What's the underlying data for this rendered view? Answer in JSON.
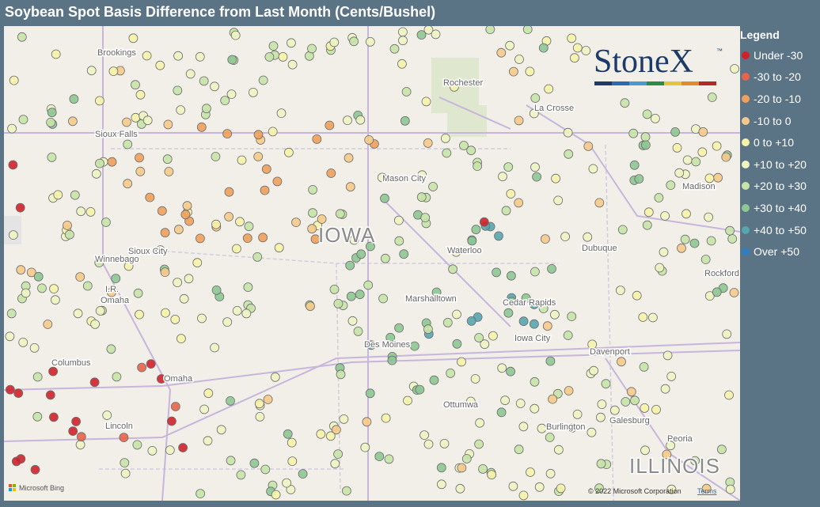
{
  "header": {
    "title": "Soybean Spot Basis Difference from Last Month (Cents/Bushel)"
  },
  "legend": {
    "title": "Legend",
    "items": [
      {
        "label": "Under -30",
        "color": "#d0212b"
      },
      {
        "label": "-30 to -20",
        "color": "#e8634a"
      },
      {
        "label": "-20 to -10",
        "color": "#f0a05c"
      },
      {
        "label": "-10 to 0",
        "color": "#f6c98a"
      },
      {
        "label": "0 to +10",
        "color": "#f6f2a8"
      },
      {
        "label": "+10 to +20",
        "color": "#eef4c2"
      },
      {
        "label": "+20 to +30",
        "color": "#c7e3a8"
      },
      {
        "label": "+30 to +40",
        "color": "#8ec793"
      },
      {
        "label": "+40 to +50",
        "color": "#58a5b0"
      },
      {
        "label": "Over +50",
        "color": "#2f7fc0"
      }
    ]
  },
  "logo": {
    "name": "StoneX",
    "mark": "™"
  },
  "map": {
    "labels": [
      "Brookings",
      "Rochester",
      "La Crosse",
      "Sioux Falls",
      "Mason City",
      "Madison",
      "Sioux City",
      "Waterloo",
      "Dubuque",
      "Rockford",
      "Winnebago",
      "I.R.",
      "Omaha",
      "Marshalltown",
      "Cedar Rapids",
      "Iowa City",
      "Davenport",
      "Des Moines",
      "Omaha",
      "Columbus",
      "Lincoln",
      "Ottumwa",
      "Burlington",
      "Galesburg",
      "Peoria",
      "IOWA",
      "ILLINOIS"
    ]
  },
  "attribution": {
    "bing": "Microsoft Bing",
    "copyright": "© 2022 Microsoft Corporation",
    "terms": "Terms"
  }
}
